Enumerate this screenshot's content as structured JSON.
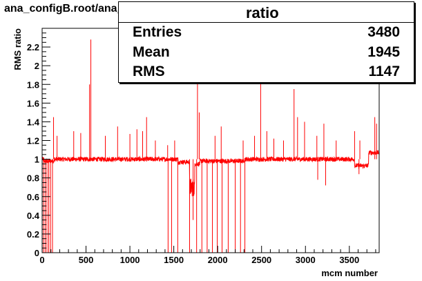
{
  "file_label": "ana_configB.root/ana_SM_alone.root",
  "stats": {
    "title": "ratio",
    "rows": [
      {
        "label": "Entries",
        "value": "3480"
      },
      {
        "label": "Mean",
        "value": "1945"
      },
      {
        "label": "RMS",
        "value": "1147"
      }
    ]
  },
  "colors": {
    "line": "#ff0000",
    "axis": "#000000",
    "frame": "#000000"
  },
  "chart_data": {
    "type": "line",
    "xlabel": "mcm number",
    "ylabel": "RMS ratio",
    "xlim": [
      0,
      3840
    ],
    "ylim": [
      0,
      2.4
    ],
    "x_ticks": [
      0,
      500,
      1000,
      1500,
      2000,
      2500,
      3000,
      3500
    ],
    "y_ticks": [
      0,
      0.2,
      0.4,
      0.6,
      0.8,
      1,
      1.2,
      1.4,
      1.6,
      1.8,
      2,
      2.2
    ],
    "baseline": 1.0,
    "noise": 0.025,
    "x_step": 2,
    "segments": [
      {
        "x": [
          0,
          20
        ],
        "level": 1.0
      },
      {
        "x": [
          20,
          140
        ],
        "level": 0.98
      },
      {
        "x": [
          140,
          1550
        ],
        "level": 1.0
      },
      {
        "x": [
          1550,
          1680
        ],
        "level": 0.97
      },
      {
        "x": [
          1680,
          1740
        ],
        "level": 0.7
      },
      {
        "x": [
          1740,
          1800
        ],
        "level": 0.95
      },
      {
        "x": [
          1800,
          2300
        ],
        "level": 0.98
      },
      {
        "x": [
          2300,
          2820
        ],
        "level": 1.0
      },
      {
        "x": [
          2820,
          3560
        ],
        "level": 1.0
      },
      {
        "x": [
          3560,
          3720
        ],
        "level": 0.93
      },
      {
        "x": [
          3720,
          3840
        ],
        "level": 1.07
      }
    ],
    "spikes": [
      {
        "x": 130,
        "y": 1.45
      },
      {
        "x": 170,
        "y": 1.25
      },
      {
        "x": 360,
        "y": 1.3
      },
      {
        "x": 440,
        "y": 1.28
      },
      {
        "x": 540,
        "y": 1.8
      },
      {
        "x": 555,
        "y": 2.28
      },
      {
        "x": 720,
        "y": 1.25
      },
      {
        "x": 860,
        "y": 1.35
      },
      {
        "x": 1000,
        "y": 1.27
      },
      {
        "x": 1080,
        "y": 1.32
      },
      {
        "x": 1145,
        "y": 1.3
      },
      {
        "x": 1190,
        "y": 1.45
      },
      {
        "x": 1290,
        "y": 1.2
      },
      {
        "x": 1430,
        "y": 1.15
      },
      {
        "x": 1510,
        "y": 1.2
      },
      {
        "x": 1770,
        "y": 1.85
      },
      {
        "x": 1790,
        "y": 1.5
      },
      {
        "x": 1970,
        "y": 1.25
      },
      {
        "x": 2040,
        "y": 1.35
      },
      {
        "x": 2290,
        "y": 1.2
      },
      {
        "x": 2420,
        "y": 1.25
      },
      {
        "x": 2490,
        "y": 1.85
      },
      {
        "x": 2560,
        "y": 1.3
      },
      {
        "x": 2640,
        "y": 1.22
      },
      {
        "x": 2750,
        "y": 1.2
      },
      {
        "x": 2870,
        "y": 1.75
      },
      {
        "x": 2910,
        "y": 1.45
      },
      {
        "x": 2990,
        "y": 1.4
      },
      {
        "x": 3130,
        "y": 1.25
      },
      {
        "x": 3210,
        "y": 1.38
      },
      {
        "x": 3350,
        "y": 1.2
      },
      {
        "x": 3560,
        "y": 1.3
      },
      {
        "x": 3620,
        "y": 1.2
      },
      {
        "x": 3790,
        "y": 1.45
      },
      {
        "x": 3810,
        "y": 1.38
      }
    ],
    "dips": [
      {
        "x": 15,
        "y": 0.0
      },
      {
        "x": 35,
        "y": 0.0
      },
      {
        "x": 55,
        "y": 0.0
      },
      {
        "x": 75,
        "y": 0.0
      },
      {
        "x": 95,
        "y": 0.0
      },
      {
        "x": 118,
        "y": 0.0
      },
      {
        "x": 1435,
        "y": 0.0
      },
      {
        "x": 1475,
        "y": 0.0
      },
      {
        "x": 1545,
        "y": 0.0
      },
      {
        "x": 1680,
        "y": 0.0
      },
      {
        "x": 1720,
        "y": 0.35
      },
      {
        "x": 1760,
        "y": 0.0
      },
      {
        "x": 1820,
        "y": 0.0
      },
      {
        "x": 1880,
        "y": 0.0
      },
      {
        "x": 1940,
        "y": 0.0
      },
      {
        "x": 1995,
        "y": 0.0
      },
      {
        "x": 2050,
        "y": 0.0
      },
      {
        "x": 2120,
        "y": 0.0
      },
      {
        "x": 2200,
        "y": 0.0
      },
      {
        "x": 2260,
        "y": 0.0
      },
      {
        "x": 2310,
        "y": 0.0
      },
      {
        "x": 3140,
        "y": 0.78
      },
      {
        "x": 3230,
        "y": 0.72
      },
      {
        "x": 3610,
        "y": 0.84
      }
    ]
  }
}
